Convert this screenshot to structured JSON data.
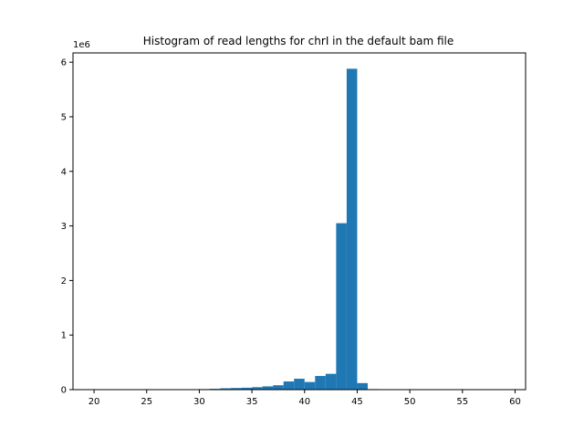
{
  "chart_data": {
    "type": "bar",
    "title": "Histogram of read lengths for chrI in the default bam file",
    "xlabel": "",
    "ylabel": "",
    "y_offset_label": "1e6",
    "xlim": [
      18.0,
      61.0
    ],
    "ylim": [
      0,
      6.17
    ],
    "x_ticks": [
      20,
      25,
      30,
      35,
      40,
      45,
      50,
      55,
      60
    ],
    "y_ticks": [
      0,
      1,
      2,
      3,
      4,
      5,
      6
    ],
    "bin_width": 1,
    "bar_color": "#1f77b4",
    "grid": false,
    "bins": [
      {
        "x": 30,
        "value": 0.01
      },
      {
        "x": 31,
        "value": 0.015
      },
      {
        "x": 32,
        "value": 0.025
      },
      {
        "x": 33,
        "value": 0.03
      },
      {
        "x": 34,
        "value": 0.035
      },
      {
        "x": 35,
        "value": 0.045
      },
      {
        "x": 36,
        "value": 0.06
      },
      {
        "x": 37,
        "value": 0.08
      },
      {
        "x": 38,
        "value": 0.15
      },
      {
        "x": 39,
        "value": 0.2
      },
      {
        "x": 40,
        "value": 0.14
      },
      {
        "x": 41,
        "value": 0.25
      },
      {
        "x": 42,
        "value": 0.29
      },
      {
        "x": 43,
        "value": 3.05
      },
      {
        "x": 44,
        "value": 5.88
      },
      {
        "x": 45,
        "value": 0.12
      },
      {
        "x": 46,
        "value": 0.01
      }
    ]
  }
}
